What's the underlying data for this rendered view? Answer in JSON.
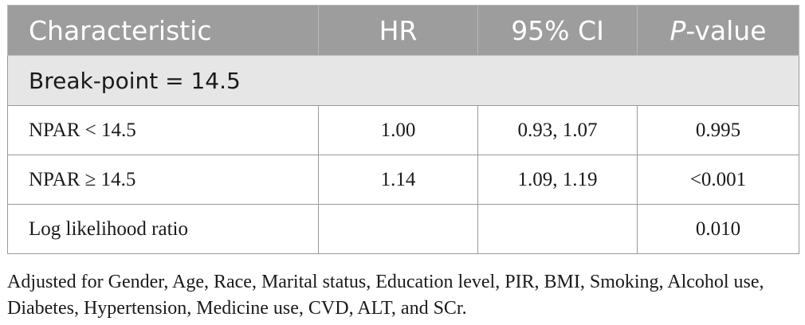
{
  "table": {
    "headers": {
      "characteristic": "Characteristic",
      "hr": "HR",
      "ci": "95% CI",
      "p_italic": "P",
      "p_rest": "-value"
    },
    "section": "Break-point = 14.5",
    "rows": [
      {
        "label": "NPAR < 14.5",
        "hr": "1.00",
        "ci": "0.93, 1.07",
        "p": "0.995"
      },
      {
        "label": "NPAR ≥ 14.5",
        "hr": "1.14",
        "ci": "1.09, 1.19",
        "p": "<0.001"
      },
      {
        "label": "Log likelihood ratio",
        "hr": "",
        "ci": "",
        "p": "0.010"
      }
    ]
  },
  "footnote": "Adjusted for Gender, Age, Race, Marital status, Education level, PIR, BMI, Smoking, Alcohol use, Diabetes, Hypertension, Medicine use, CVD, ALT, and SCr."
}
